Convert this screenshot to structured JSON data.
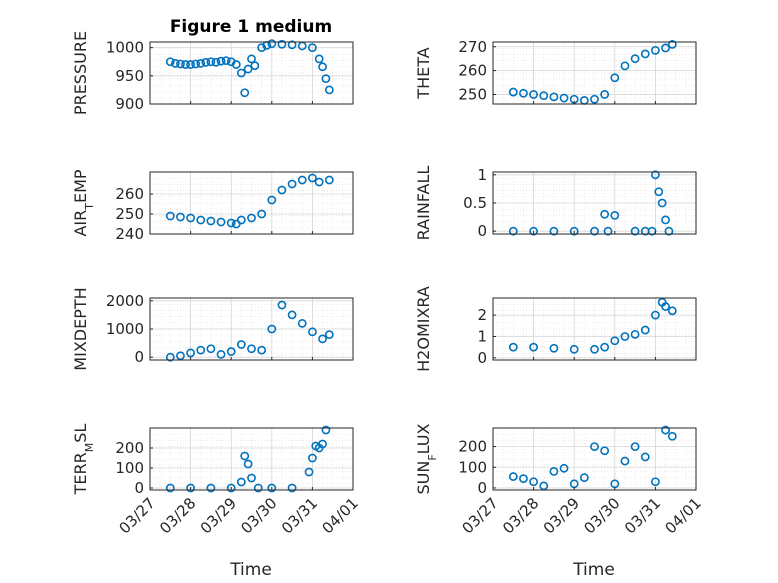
{
  "figure": {
    "title": "Figure 1 medium",
    "x_axis_label": "Time",
    "x_ticks": [
      "03/27",
      "03/28",
      "03/29",
      "03/30",
      "03/31",
      "04/01"
    ]
  },
  "chart_data": [
    {
      "type": "scatter",
      "ylabel": "PRESSURE",
      "yticks": [
        "900",
        "950",
        "1000"
      ],
      "ylim": [
        900,
        1010
      ],
      "grid": true,
      "marker": "open-circle",
      "color": "#0072BD",
      "x": [
        "03/27 12:00",
        "03/27 15:00",
        "03/27 18:00",
        "03/27 21:00",
        "03/28 00:00",
        "03/28 03:00",
        "03/28 06:00",
        "03/28 09:00",
        "03/28 12:00",
        "03/28 15:00",
        "03/28 18:00",
        "03/28 21:00",
        "03/29 00:00",
        "03/29 03:00",
        "03/29 06:00",
        "03/29 08:00",
        "03/29 10:00",
        "03/29 12:00",
        "03/29 14:00",
        "03/29 18:00",
        "03/29 21:00",
        "03/30 00:00",
        "03/30 06:00",
        "03/30 12:00",
        "03/30 18:00",
        "03/31 00:00",
        "03/31 04:00",
        "03/31 06:00",
        "03/31 08:00",
        "03/31 10:00"
      ],
      "y": [
        975,
        972,
        971,
        970,
        970,
        971,
        972,
        974,
        975,
        974,
        976,
        977,
        975,
        970,
        955,
        920,
        962,
        980,
        968,
        1000,
        1004,
        1007,
        1006,
        1005,
        1003,
        1000,
        980,
        966,
        945,
        925
      ]
    },
    {
      "type": "scatter",
      "ylabel": "THETA",
      "yticks": [
        "250",
        "260",
        "270"
      ],
      "ylim": [
        246,
        272
      ],
      "grid": true,
      "marker": "open-circle",
      "color": "#0072BD",
      "x": [
        "03/27 12:00",
        "03/27 18:00",
        "03/28 00:00",
        "03/28 06:00",
        "03/28 12:00",
        "03/28 18:00",
        "03/29 00:00",
        "03/29 06:00",
        "03/29 12:00",
        "03/29 18:00",
        "03/30 00:00",
        "03/30 06:00",
        "03/30 12:00",
        "03/30 18:00",
        "03/31 00:00",
        "03/31 06:00",
        "03/31 10:00"
      ],
      "y": [
        251,
        250.5,
        250,
        249.5,
        249,
        248.5,
        248,
        247.5,
        248,
        250,
        257,
        262,
        265,
        267,
        268.5,
        269.5,
        271
      ]
    },
    {
      "type": "scatter",
      "ylabel": "AIR_TEMP",
      "yticks": [
        "240",
        "250",
        "260"
      ],
      "ylim": [
        240,
        271
      ],
      "grid": true,
      "marker": "open-circle",
      "color": "#0072BD",
      "x": [
        "03/27 12:00",
        "03/27 18:00",
        "03/28 00:00",
        "03/28 06:00",
        "03/28 12:00",
        "03/28 18:00",
        "03/29 00:00",
        "03/29 03:00",
        "03/29 06:00",
        "03/29 12:00",
        "03/29 18:00",
        "03/30 00:00",
        "03/30 06:00",
        "03/30 12:00",
        "03/30 18:00",
        "03/31 00:00",
        "03/31 04:00",
        "03/31 10:00"
      ],
      "y": [
        249,
        248.5,
        248,
        247,
        246.5,
        246,
        245.5,
        245,
        247,
        248,
        250,
        257,
        262,
        265,
        267,
        268,
        266,
        267
      ]
    },
    {
      "type": "scatter",
      "ylabel": "RAINFALL",
      "yticks": [
        "0",
        "0.5",
        "1"
      ],
      "ylim": [
        -0.05,
        1.05
      ],
      "grid": true,
      "marker": "open-circle",
      "color": "#0072BD",
      "x": [
        "03/27 12:00",
        "03/28 00:00",
        "03/28 12:00",
        "03/29 00:00",
        "03/29 12:00",
        "03/29 18:00",
        "03/29 20:00",
        "03/30 00:00",
        "03/30 12:00",
        "03/30 18:00",
        "03/30 22:00",
        "03/31 00:00",
        "03/31 02:00",
        "03/31 04:00",
        "03/31 06:00",
        "03/31 08:00"
      ],
      "y": [
        0,
        0,
        0,
        0,
        0,
        0.3,
        0,
        0.28,
        0,
        0,
        0,
        1.0,
        0.7,
        0.5,
        0.2,
        0
      ]
    },
    {
      "type": "scatter",
      "ylabel": "MIXDEPTH",
      "yticks": [
        "0",
        "1000",
        "2000"
      ],
      "ylim": [
        -100,
        2100
      ],
      "grid": true,
      "marker": "open-circle",
      "color": "#0072BD",
      "x": [
        "03/27 12:00",
        "03/27 18:00",
        "03/28 00:00",
        "03/28 06:00",
        "03/28 12:00",
        "03/28 18:00",
        "03/29 00:00",
        "03/29 06:00",
        "03/29 12:00",
        "03/29 18:00",
        "03/30 00:00",
        "03/30 06:00",
        "03/30 12:00",
        "03/30 18:00",
        "03/31 00:00",
        "03/31 06:00",
        "03/31 10:00"
      ],
      "y": [
        0,
        50,
        150,
        250,
        300,
        100,
        200,
        450,
        300,
        250,
        1000,
        1850,
        1500,
        1200,
        900,
        650,
        800
      ]
    },
    {
      "type": "scatter",
      "ylabel": "H2OMIXRA",
      "yticks": [
        "0",
        "1",
        "2"
      ],
      "ylim": [
        -0.1,
        2.8
      ],
      "grid": true,
      "marker": "open-circle",
      "color": "#0072BD",
      "x": [
        "03/27 12:00",
        "03/28 00:00",
        "03/28 12:00",
        "03/29 00:00",
        "03/29 12:00",
        "03/29 18:00",
        "03/30 00:00",
        "03/30 06:00",
        "03/30 12:00",
        "03/30 18:00",
        "03/31 00:00",
        "03/31 04:00",
        "03/31 06:00",
        "03/31 10:00"
      ],
      "y": [
        0.5,
        0.5,
        0.45,
        0.4,
        0.4,
        0.5,
        0.8,
        1.0,
        1.1,
        1.3,
        2.0,
        2.6,
        2.4,
        2.2
      ]
    },
    {
      "type": "scatter",
      "ylabel": "TERR_MSL",
      "yticks": [
        "0",
        "100",
        "200"
      ],
      "ylim": [
        -10,
        300
      ],
      "grid": true,
      "marker": "open-circle",
      "color": "#0072BD",
      "x": [
        "03/27 12:00",
        "03/28 00:00",
        "03/28 12:00",
        "03/29 00:00",
        "03/29 06:00",
        "03/29 08:00",
        "03/29 10:00",
        "03/29 12:00",
        "03/29 16:00",
        "03/30 00:00",
        "03/30 12:00",
        "03/30 22:00",
        "03/31 00:00",
        "03/31 02:00",
        "03/31 04:00",
        "03/31 06:00",
        "03/31 08:00"
      ],
      "y": [
        0,
        0,
        0,
        0,
        30,
        160,
        120,
        50,
        0,
        0,
        0,
        80,
        150,
        210,
        200,
        220,
        290
      ]
    },
    {
      "type": "scatter",
      "ylabel": "SUN_FLUX",
      "yticks": [
        "0",
        "100",
        "200"
      ],
      "ylim": [
        -10,
        290
      ],
      "grid": true,
      "marker": "open-circle",
      "color": "#0072BD",
      "x": [
        "03/27 12:00",
        "03/27 18:00",
        "03/28 00:00",
        "03/28 06:00",
        "03/28 12:00",
        "03/28 18:00",
        "03/29 00:00",
        "03/29 06:00",
        "03/29 12:00",
        "03/29 18:00",
        "03/30 00:00",
        "03/30 06:00",
        "03/30 12:00",
        "03/30 18:00",
        "03/31 00:00",
        "03/31 06:00",
        "03/31 10:00"
      ],
      "y": [
        55,
        45,
        30,
        10,
        80,
        95,
        20,
        50,
        200,
        180,
        20,
        130,
        200,
        150,
        30,
        280,
        250
      ]
    }
  ]
}
